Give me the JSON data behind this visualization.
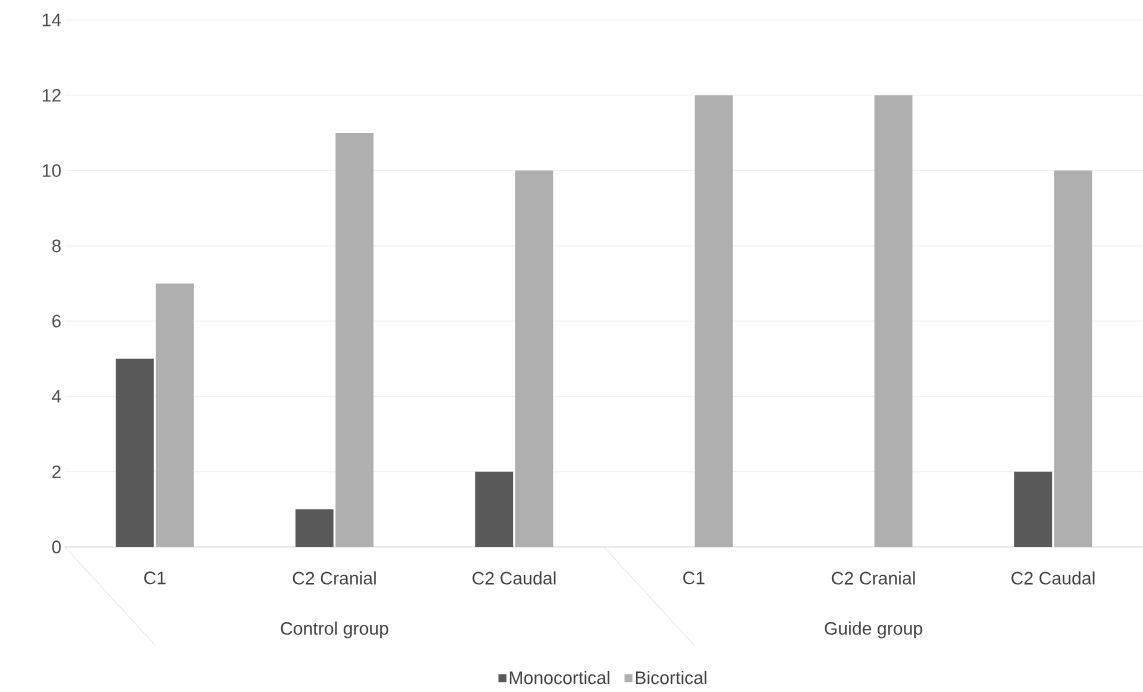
{
  "chart_data": {
    "type": "bar",
    "categories": [
      "C1",
      "C2 Cranial",
      "C2 Caudal",
      "C1",
      "C2 Cranial",
      "C2 Caudal"
    ],
    "series": [
      {
        "name": "Monocortical",
        "color": "#595959",
        "values": [
          5,
          1,
          2,
          0,
          0,
          2
        ]
      },
      {
        "name": "Bicortical",
        "color": "#afafaf",
        "values": [
          7,
          11,
          10,
          12,
          12,
          10
        ]
      }
    ],
    "annotations": [
      "Control group",
      "Guide group"
    ],
    "ylim": [
      0,
      14
    ],
    "yticks": [
      0,
      2,
      4,
      6,
      8,
      10,
      12,
      14
    ],
    "grid": "y",
    "legend": "bottom"
  }
}
